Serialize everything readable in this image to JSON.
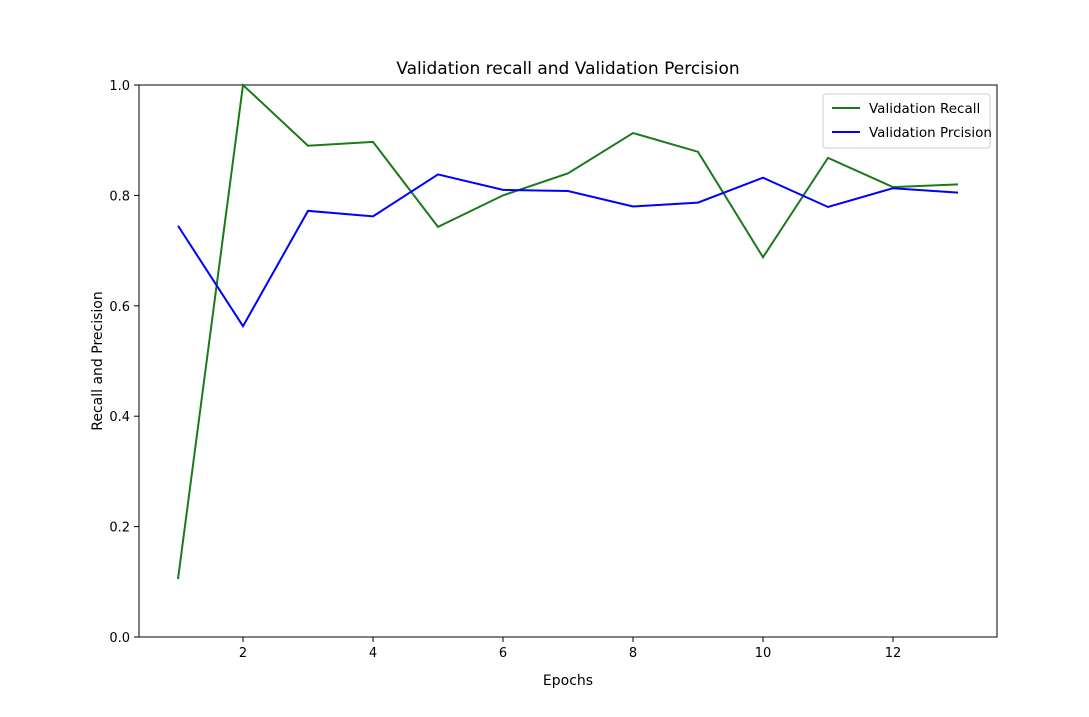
{
  "chart_data": {
    "type": "line",
    "title": "Validation recall and Validation Percision",
    "xlabel": "Epochs",
    "ylabel": "Recall and Precision",
    "xlim": [
      0.4,
      13.6
    ],
    "ylim": [
      0.0,
      1.0
    ],
    "xticks": [
      2,
      4,
      6,
      8,
      10,
      12
    ],
    "yticks": [
      0.0,
      0.2,
      0.4,
      0.6,
      0.8,
      1.0
    ],
    "xtick_labels": [
      "2",
      "4",
      "6",
      "8",
      "10",
      "12"
    ],
    "ytick_labels": [
      "0.0",
      "0.2",
      "0.4",
      "0.6",
      "0.8",
      "1.0"
    ],
    "grid": false,
    "legend_position": "top-right",
    "x": [
      1,
      2,
      3,
      4,
      5,
      6,
      7,
      8,
      9,
      10,
      11,
      12,
      13
    ],
    "series": [
      {
        "name": "Validation Recall",
        "color": "#1a7a1a",
        "values": [
          0.105,
          1.0,
          0.89,
          0.897,
          0.743,
          0.8,
          0.84,
          0.913,
          0.879,
          0.688,
          0.868,
          0.815,
          0.82
        ]
      },
      {
        "name": "Validation Prcision",
        "color": "#0000ff",
        "values": [
          0.745,
          0.563,
          0.772,
          0.762,
          0.838,
          0.81,
          0.808,
          0.78,
          0.787,
          0.832,
          0.779,
          0.813,
          0.805
        ]
      }
    ]
  }
}
